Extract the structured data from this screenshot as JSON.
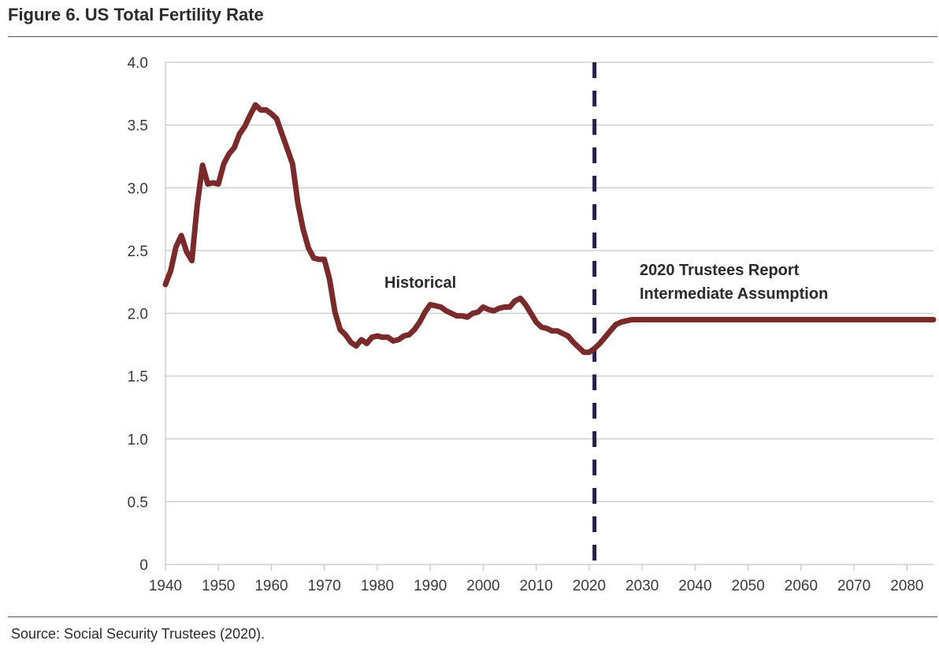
{
  "title": "Figure 6. US Total Fertility Rate",
  "source": "Source: Social Security Trustees (2020).",
  "chart_data": {
    "type": "line",
    "title": "Figure 6. US Total Fertility Rate",
    "xlabel": "",
    "ylabel": "",
    "xlim": [
      1940,
      2085
    ],
    "ylim": [
      0,
      4.0
    ],
    "x_ticks": [
      "1940",
      "1950",
      "1960",
      "1970",
      "1980",
      "1990",
      "2000",
      "2010",
      "2020",
      "2030",
      "2040",
      "2050",
      "2060",
      "2070",
      "2080"
    ],
    "y_ticks": [
      "0",
      "0.5",
      "1.0",
      "1.5",
      "2.0",
      "2.5",
      "3.0",
      "3.5",
      "4.0"
    ],
    "grid": "horizontal",
    "line_color": "#7a2a2a",
    "divider_color": "#25204a",
    "divider_x": 2021,
    "annotations": {
      "historical": "Historical",
      "projection_line1": "2020 Trustees Report",
      "projection_line2": "Intermediate Assumption"
    },
    "series": [
      {
        "x": [
          1940,
          1941,
          1942,
          1943,
          1944,
          1945,
          1946,
          1947,
          1948,
          1949,
          1950,
          1951,
          1952,
          1953,
          1954,
          1955,
          1956,
          1957,
          1958,
          1959,
          1960,
          1961,
          1962,
          1963,
          1964,
          1965,
          1966,
          1967,
          1968,
          1969,
          1970,
          1971,
          1972,
          1973,
          1974,
          1975,
          1976,
          1977,
          1978,
          1979,
          1980,
          1981,
          1982,
          1983,
          1984,
          1985,
          1986,
          1987,
          1988,
          1989,
          1990,
          1991,
          1992,
          1993,
          1994,
          1995,
          1996,
          1997,
          1998,
          1999,
          2000,
          2001,
          2002,
          2003,
          2004,
          2005,
          2006,
          2007,
          2008,
          2009,
          2010,
          2011,
          2012,
          2013,
          2014,
          2015,
          2016,
          2017,
          2018,
          2019,
          2020,
          2021,
          2022,
          2023,
          2024,
          2025,
          2026,
          2027,
          2028,
          2029,
          2030,
          2040,
          2050,
          2060,
          2070,
          2080,
          2085
        ],
        "values": [
          2.23,
          2.34,
          2.53,
          2.62,
          2.49,
          2.42,
          2.86,
          3.18,
          3.03,
          3.04,
          3.03,
          3.19,
          3.27,
          3.32,
          3.43,
          3.49,
          3.58,
          3.66,
          3.62,
          3.62,
          3.59,
          3.55,
          3.43,
          3.31,
          3.19,
          2.88,
          2.67,
          2.52,
          2.44,
          2.43,
          2.43,
          2.27,
          2.01,
          1.87,
          1.83,
          1.77,
          1.74,
          1.79,
          1.76,
          1.81,
          1.82,
          1.81,
          1.81,
          1.78,
          1.79,
          1.82,
          1.83,
          1.87,
          1.93,
          2.01,
          2.07,
          2.06,
          2.05,
          2.02,
          2.0,
          1.98,
          1.98,
          1.97,
          2.0,
          2.01,
          2.05,
          2.03,
          2.02,
          2.04,
          2.05,
          2.05,
          2.1,
          2.12,
          2.07,
          2.0,
          1.93,
          1.89,
          1.88,
          1.86,
          1.86,
          1.84,
          1.82,
          1.77,
          1.73,
          1.69,
          1.69,
          1.72,
          1.76,
          1.81,
          1.86,
          1.91,
          1.93,
          1.94,
          1.95,
          1.95,
          1.95,
          1.95,
          1.95,
          1.95,
          1.95,
          1.95,
          1.95
        ]
      }
    ]
  }
}
